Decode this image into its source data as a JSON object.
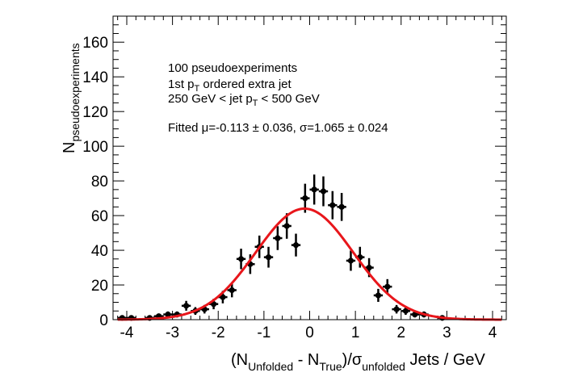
{
  "chart_data": {
    "type": "scatter",
    "xlabel": {
      "main_open": "(N",
      "sub_unfolded": "Unfolded",
      "minus": " - N",
      "sub_true": "True",
      "close_div": ")/σ",
      "sub_unfolded2": "unfolded",
      "suffix": " Jets / GeV"
    },
    "ylabel": {
      "main": "N",
      "sub": "pseudoexperiments"
    },
    "xlim": [
      -4.3,
      4.3
    ],
    "ylim": [
      0,
      175
    ],
    "x_ticks": [
      -4,
      -3,
      -2,
      -1,
      0,
      1,
      2,
      3,
      4
    ],
    "x_tick_labels": [
      "-4",
      "-3",
      "-2",
      "-1",
      "0",
      "1",
      "2",
      "3",
      "4"
    ],
    "y_ticks": [
      0,
      20,
      40,
      60,
      80,
      100,
      120,
      140,
      160
    ],
    "y_tick_labels": [
      "0",
      "20",
      "40",
      "60",
      "80",
      "100",
      "120",
      "140",
      "160"
    ],
    "grid": false,
    "annotations": {
      "line1": "100 pseudoexperiments",
      "line2_pre": " 1st p",
      "line2_sub": "T",
      "line2_post": " ordered extra jet",
      "line3_pre": "250 GeV < jet p",
      "line3_sub": "T",
      "line3_post": " < 500 GeV",
      "line4": "Fitted μ=-0.113 ± 0.036, σ=1.065 ± 0.024"
    },
    "bin_width": 0.2,
    "points": [
      {
        "x": -4.1,
        "y": 1
      },
      {
        "x": -3.9,
        "y": 1
      },
      {
        "x": -3.5,
        "y": 1
      },
      {
        "x": -3.3,
        "y": 2
      },
      {
        "x": -3.1,
        "y": 3
      },
      {
        "x": -2.9,
        "y": 3
      },
      {
        "x": -2.7,
        "y": 8
      },
      {
        "x": -2.5,
        "y": 5
      },
      {
        "x": -2.3,
        "y": 6
      },
      {
        "x": -2.1,
        "y": 9
      },
      {
        "x": -1.9,
        "y": 13
      },
      {
        "x": -1.7,
        "y": 17
      },
      {
        "x": -1.5,
        "y": 35
      },
      {
        "x": -1.3,
        "y": 32
      },
      {
        "x": -1.1,
        "y": 42
      },
      {
        "x": -0.9,
        "y": 36
      },
      {
        "x": -0.7,
        "y": 47
      },
      {
        "x": -0.5,
        "y": 54
      },
      {
        "x": -0.3,
        "y": 43
      },
      {
        "x": -0.1,
        "y": 70
      },
      {
        "x": 0.1,
        "y": 75
      },
      {
        "x": 0.3,
        "y": 74
      },
      {
        "x": 0.5,
        "y": 66
      },
      {
        "x": 0.7,
        "y": 65
      },
      {
        "x": 0.9,
        "y": 34
      },
      {
        "x": 1.1,
        "y": 36
      },
      {
        "x": 1.3,
        "y": 30
      },
      {
        "x": 1.5,
        "y": 14
      },
      {
        "x": 1.7,
        "y": 19
      },
      {
        "x": 1.9,
        "y": 6
      },
      {
        "x": 2.1,
        "y": 5
      },
      {
        "x": 2.3,
        "y": 3
      },
      {
        "x": 2.5,
        "y": 3
      },
      {
        "x": 2.9,
        "y": 1
      }
    ],
    "fit": {
      "type": "gaussian",
      "mu": -0.113,
      "sigma": 1.065,
      "amplitude": 64,
      "color": "#e8161b"
    },
    "marker_color": "#000000"
  }
}
